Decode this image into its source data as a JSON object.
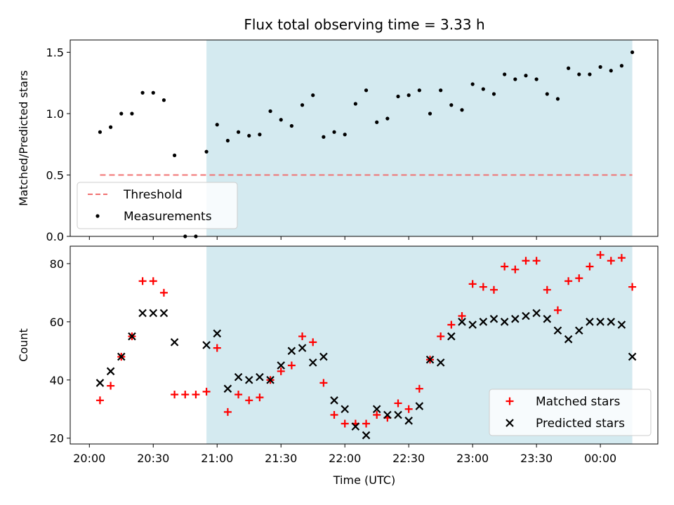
{
  "chart_data": {
    "type": "scatter",
    "title": "Flux total observing time = 3.33 h",
    "xlabel": "Time (UTC)",
    "x_tick_labels": [
      "20:00",
      "20:30",
      "21:00",
      "21:30",
      "22:00",
      "22:30",
      "23:00",
      "23:30",
      "00:00"
    ],
    "x_ticks_minutes": [
      0,
      30,
      60,
      90,
      120,
      150,
      180,
      210,
      240
    ],
    "xlim_minutes": [
      -9,
      267
    ],
    "observing_window_minutes": [
      55,
      255
    ],
    "highlight_color": "#d4eaf0",
    "panels": [
      {
        "ylabel": "Matched/Predicted stars",
        "ylim": [
          0,
          1.6
        ],
        "y_tick_labels": [
          "0.0",
          "0.5",
          "1.0",
          "1.5"
        ],
        "y_ticks": [
          0,
          0.5,
          1.0,
          1.5
        ],
        "legend_position": "lower-left",
        "series": [
          {
            "name": "Threshold",
            "style": "dashed-line",
            "color": "#f07070",
            "x": [
              5,
              255
            ],
            "y": [
              0.5,
              0.5
            ]
          },
          {
            "name": "Measurements",
            "style": "dot",
            "color": "#000000",
            "x": [
              5,
              10,
              15,
              20,
              25,
              30,
              35,
              40,
              45,
              50,
              55,
              60,
              65,
              70,
              75,
              80,
              85,
              90,
              95,
              100,
              105,
              110,
              115,
              120,
              125,
              130,
              135,
              140,
              145,
              150,
              155,
              160,
              165,
              170,
              175,
              180,
              185,
              190,
              195,
              200,
              205,
              210,
              215,
              220,
              225,
              230,
              235,
              240,
              245,
              250,
              255
            ],
            "y": [
              0.85,
              0.89,
              1.0,
              1.0,
              1.17,
              1.17,
              1.11,
              0.66,
              0.0,
              0.0,
              0.69,
              0.91,
              0.78,
              0.85,
              0.82,
              0.83,
              1.02,
              0.95,
              0.9,
              1.07,
              1.15,
              0.81,
              0.85,
              0.83,
              1.08,
              1.19,
              0.93,
              0.96,
              1.14,
              1.15,
              1.19,
              1.0,
              1.19,
              1.07,
              1.03,
              1.24,
              1.2,
              1.16,
              1.32,
              1.28,
              1.31,
              1.28,
              1.16,
              1.12,
              1.37,
              1.32,
              1.32,
              1.38,
              1.35,
              1.39,
              1.5
            ]
          }
        ]
      },
      {
        "ylabel": "Count",
        "ylim": [
          18,
          86
        ],
        "y_tick_labels": [
          "20",
          "40",
          "60",
          "80"
        ],
        "y_ticks": [
          20,
          40,
          60,
          80
        ],
        "legend_position": "lower-right",
        "series": [
          {
            "name": "Matched stars",
            "style": "plus",
            "color": "#ff0000",
            "x": [
              5,
              10,
              15,
              20,
              25,
              30,
              35,
              40,
              45,
              50,
              55,
              60,
              65,
              70,
              75,
              80,
              85,
              90,
              95,
              100,
              105,
              110,
              115,
              120,
              125,
              130,
              135,
              140,
              145,
              150,
              155,
              160,
              165,
              170,
              175,
              180,
              185,
              190,
              195,
              200,
              205,
              210,
              215,
              220,
              225,
              230,
              235,
              240,
              245,
              250,
              255
            ],
            "y": [
              33,
              38,
              48,
              55,
              74,
              74,
              70,
              35,
              35,
              35,
              36,
              51,
              29,
              35,
              33,
              34,
              40,
              43,
              45,
              55,
              53,
              39,
              28,
              25,
              25,
              25,
              28,
              27,
              32,
              30,
              37,
              47,
              55,
              59,
              62,
              73,
              72,
              71,
              79,
              78,
              81,
              81,
              71,
              64,
              74,
              75,
              79,
              83,
              81,
              82,
              72
            ]
          },
          {
            "name": "Predicted stars",
            "style": "cross",
            "color": "#000000",
            "x": [
              5,
              10,
              15,
              20,
              25,
              30,
              35,
              40,
              55,
              60,
              65,
              70,
              75,
              80,
              85,
              90,
              95,
              100,
              105,
              110,
              115,
              120,
              125,
              130,
              135,
              140,
              145,
              150,
              155,
              160,
              165,
              170,
              175,
              180,
              185,
              190,
              195,
              200,
              205,
              210,
              215,
              220,
              225,
              230,
              235,
              240,
              245,
              250,
              255
            ],
            "y": [
              39,
              43,
              48,
              55,
              63,
              63,
              63,
              53,
              52,
              56,
              37,
              41,
              40,
              41,
              40,
              45,
              50,
              51,
              46,
              48,
              33,
              30,
              24,
              21,
              30,
              28,
              28,
              26,
              31,
              47,
              46,
              55,
              60,
              59,
              60,
              61,
              60,
              61,
              62,
              63,
              61,
              57,
              54,
              57,
              60,
              60,
              60,
              59,
              48
            ]
          }
        ]
      }
    ]
  }
}
